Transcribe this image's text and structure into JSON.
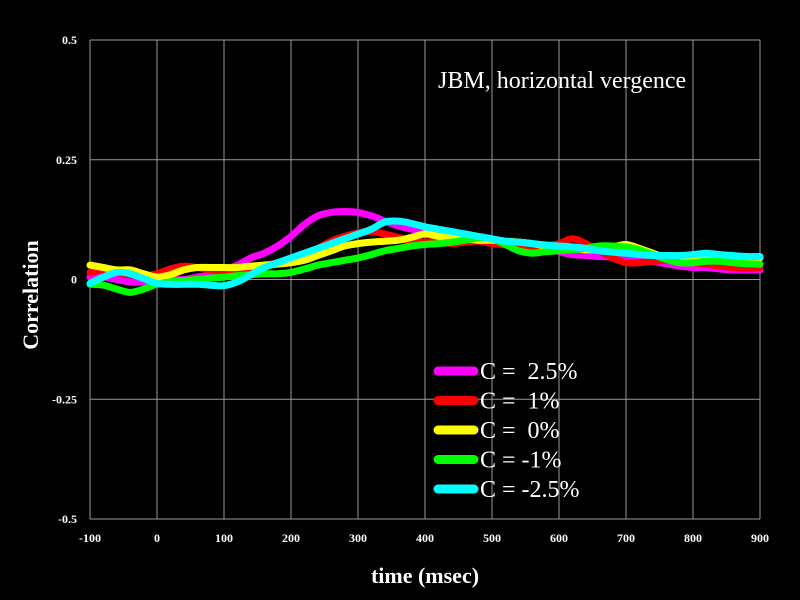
{
  "chart_data": {
    "type": "line",
    "title": "",
    "annotation": "JBM, horizontal vergence",
    "xlabel": "time (msec)",
    "ylabel": "Correlation",
    "xlim": [
      -100,
      900
    ],
    "ylim": [
      -0.5,
      0.5
    ],
    "xticks": [
      -100,
      0,
      100,
      200,
      300,
      400,
      500,
      600,
      700,
      800,
      900
    ],
    "yticks": [
      {
        "value": 0.5,
        "label": "0.5"
      },
      {
        "value": 0.25,
        "label": "0.25"
      },
      {
        "value": 0,
        "label": "0"
      },
      {
        "value": -0.25,
        "label": "-0.25"
      },
      {
        "value": -0.5,
        "label": "-0.5"
      }
    ],
    "grid": true,
    "legend": "bottom-center",
    "series": [
      {
        "name": "C =  2.5%",
        "color": "#ff00ff",
        "x": [
          -100,
          -80,
          -60,
          -40,
          -20,
          0,
          20,
          40,
          60,
          80,
          100,
          120,
          140,
          160,
          180,
          200,
          220,
          240,
          260,
          280,
          300,
          320,
          340,
          360,
          380,
          400,
          420,
          440,
          460,
          480,
          500,
          520,
          540,
          560,
          580,
          600,
          620,
          640,
          660,
          680,
          700,
          720,
          740,
          760,
          780,
          800,
          820,
          840,
          860,
          880,
          900
        ],
        "y": [
          0.005,
          0.005,
          0,
          -0.005,
          -0.005,
          0,
          0,
          0,
          0.005,
          0.01,
          0.02,
          0.03,
          0.045,
          0.055,
          0.07,
          0.09,
          0.115,
          0.133,
          0.14,
          0.142,
          0.14,
          0.133,
          0.122,
          0.112,
          0.105,
          0.1,
          0.097,
          0.095,
          0.09,
          0.082,
          0.078,
          0.075,
          0.073,
          0.07,
          0.066,
          0.058,
          0.052,
          0.05,
          0.048,
          0.047,
          0.046,
          0.043,
          0.038,
          0.033,
          0.028,
          0.025,
          0.025,
          0.022,
          0.02,
          0.02,
          0.02
        ]
      },
      {
        "name": "C =  1%",
        "color": "#ff0000",
        "x": [
          -100,
          -80,
          -60,
          -40,
          -20,
          0,
          20,
          40,
          60,
          80,
          100,
          120,
          140,
          160,
          180,
          200,
          220,
          240,
          260,
          280,
          300,
          320,
          340,
          360,
          380,
          400,
          420,
          440,
          460,
          480,
          500,
          520,
          540,
          560,
          580,
          600,
          620,
          640,
          660,
          680,
          700,
          720,
          740,
          760,
          780,
          800,
          820,
          840,
          860,
          880,
          900
        ],
        "y": [
          0.015,
          0.02,
          0.015,
          0.01,
          0.008,
          0.012,
          0.022,
          0.028,
          0.025,
          0.02,
          0.02,
          0.022,
          0.025,
          0.03,
          0.035,
          0.04,
          0.05,
          0.065,
          0.08,
          0.09,
          0.097,
          0.1,
          0.095,
          0.088,
          0.08,
          0.078,
          0.08,
          0.075,
          0.078,
          0.08,
          0.075,
          0.072,
          0.07,
          0.068,
          0.07,
          0.075,
          0.085,
          0.075,
          0.06,
          0.045,
          0.035,
          0.035,
          0.038,
          0.04,
          0.038,
          0.035,
          0.032,
          0.028,
          0.025,
          0.023,
          0.025
        ]
      },
      {
        "name": "C =  0%",
        "color": "#ffff00",
        "x": [
          -100,
          -80,
          -60,
          -40,
          -20,
          0,
          20,
          40,
          60,
          80,
          100,
          120,
          140,
          160,
          180,
          200,
          220,
          240,
          260,
          280,
          300,
          320,
          340,
          360,
          380,
          400,
          420,
          440,
          460,
          480,
          500,
          520,
          540,
          560,
          580,
          600,
          620,
          640,
          660,
          680,
          700,
          720,
          740,
          760,
          780,
          800,
          820,
          840,
          860,
          880,
          900
        ],
        "y": [
          0.03,
          0.025,
          0.02,
          0.02,
          0.012,
          0.005,
          0.01,
          0.02,
          0.025,
          0.025,
          0.025,
          0.025,
          0.028,
          0.03,
          0.032,
          0.035,
          0.04,
          0.05,
          0.06,
          0.07,
          0.075,
          0.078,
          0.08,
          0.082,
          0.088,
          0.095,
          0.09,
          0.088,
          0.085,
          0.082,
          0.082,
          0.08,
          0.078,
          0.075,
          0.07,
          0.068,
          0.065,
          0.062,
          0.063,
          0.068,
          0.073,
          0.065,
          0.055,
          0.045,
          0.04,
          0.04,
          0.042,
          0.045,
          0.045,
          0.045,
          0.045
        ]
      },
      {
        "name": "C = -1%",
        "color": "#00ff00",
        "x": [
          -100,
          -80,
          -60,
          -40,
          -20,
          0,
          20,
          40,
          60,
          80,
          100,
          120,
          140,
          160,
          180,
          200,
          220,
          240,
          260,
          280,
          300,
          320,
          340,
          360,
          380,
          400,
          420,
          440,
          460,
          480,
          500,
          520,
          540,
          560,
          580,
          600,
          620,
          640,
          660,
          680,
          700,
          720,
          740,
          760,
          780,
          800,
          820,
          840,
          860,
          880,
          900
        ],
        "y": [
          -0.01,
          -0.012,
          -0.02,
          -0.027,
          -0.02,
          -0.01,
          -0.005,
          -0.002,
          0,
          0.003,
          0.005,
          0.008,
          0.01,
          0.012,
          0.012,
          0.015,
          0.022,
          0.03,
          0.035,
          0.04,
          0.045,
          0.052,
          0.06,
          0.065,
          0.07,
          0.073,
          0.075,
          0.078,
          0.082,
          0.087,
          0.085,
          0.073,
          0.06,
          0.055,
          0.058,
          0.06,
          0.062,
          0.065,
          0.07,
          0.07,
          0.068,
          0.062,
          0.052,
          0.042,
          0.035,
          0.035,
          0.038,
          0.038,
          0.035,
          0.033,
          0.032
        ]
      },
      {
        "name": "C = -2.5%",
        "color": "#00ffff",
        "x": [
          -100,
          -80,
          -60,
          -40,
          -20,
          0,
          20,
          40,
          60,
          80,
          100,
          120,
          140,
          160,
          180,
          200,
          220,
          240,
          260,
          280,
          300,
          320,
          340,
          360,
          380,
          400,
          420,
          440,
          460,
          480,
          500,
          520,
          540,
          560,
          580,
          600,
          620,
          640,
          660,
          680,
          700,
          720,
          740,
          760,
          780,
          800,
          820,
          840,
          860,
          880,
          900
        ],
        "y": [
          -0.008,
          0.005,
          0.015,
          0.012,
          0.002,
          -0.008,
          -0.01,
          -0.01,
          -0.01,
          -0.012,
          -0.013,
          -0.005,
          0.01,
          0.025,
          0.035,
          0.045,
          0.055,
          0.065,
          0.075,
          0.085,
          0.095,
          0.105,
          0.12,
          0.122,
          0.117,
          0.11,
          0.105,
          0.1,
          0.095,
          0.09,
          0.085,
          0.08,
          0.078,
          0.075,
          0.072,
          0.07,
          0.068,
          0.065,
          0.06,
          0.057,
          0.055,
          0.052,
          0.05,
          0.05,
          0.05,
          0.052,
          0.055,
          0.052,
          0.05,
          0.048,
          0.048
        ]
      }
    ]
  }
}
